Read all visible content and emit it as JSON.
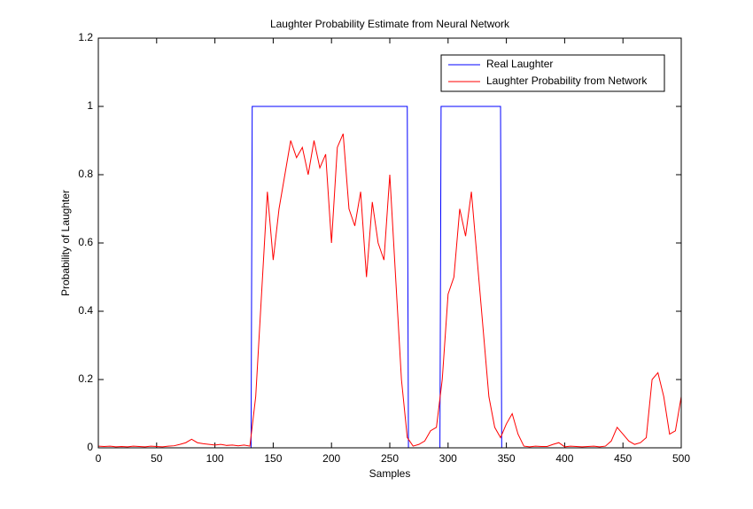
{
  "chart_data": {
    "type": "line",
    "title": "Laughter Probability Estimate from Neural Network",
    "x_label": "Samples",
    "y_label": "Probability of Laughter",
    "xlim": [
      0,
      500
    ],
    "ylim": [
      0,
      1.2
    ],
    "xticks": [
      0,
      50,
      100,
      150,
      200,
      250,
      300,
      350,
      400,
      450,
      500
    ],
    "yticks": [
      0,
      0.2,
      0.4,
      0.6,
      0.8,
      1,
      1.2
    ],
    "legend": "top-right",
    "series": [
      {
        "name": "Real Laughter",
        "color": "#0000ff",
        "x": [
          0,
          131,
          132,
          265,
          266,
          293,
          294,
          345,
          346,
          500
        ],
        "values": [
          0,
          0,
          1,
          1,
          0,
          0,
          1,
          1,
          0,
          0
        ]
      },
      {
        "name": "Laughter Probability from Network",
        "color": "#ff0000",
        "x": [
          0,
          5,
          10,
          15,
          20,
          25,
          30,
          35,
          40,
          45,
          50,
          55,
          60,
          65,
          70,
          75,
          80,
          85,
          90,
          95,
          100,
          105,
          110,
          115,
          120,
          125,
          130,
          135,
          140,
          145,
          150,
          155,
          160,
          165,
          170,
          175,
          180,
          185,
          190,
          195,
          200,
          205,
          210,
          215,
          220,
          225,
          230,
          235,
          240,
          245,
          250,
          255,
          260,
          265,
          270,
          275,
          280,
          285,
          290,
          295,
          300,
          305,
          310,
          315,
          320,
          325,
          330,
          335,
          340,
          345,
          350,
          355,
          360,
          365,
          370,
          375,
          380,
          385,
          390,
          395,
          400,
          405,
          410,
          415,
          420,
          425,
          430,
          435,
          440,
          445,
          450,
          455,
          460,
          465,
          470,
          475,
          480,
          485,
          490,
          495,
          500
        ],
        "values": [
          0.005,
          0.004,
          0.005,
          0.003,
          0.004,
          0.003,
          0.005,
          0.004,
          0.003,
          0.005,
          0.004,
          0.003,
          0.005,
          0.006,
          0.01,
          0.015,
          0.025,
          0.015,
          0.012,
          0.01,
          0.008,
          0.01,
          0.007,
          0.008,
          0.006,
          0.008,
          0.005,
          0.15,
          0.45,
          0.75,
          0.55,
          0.7,
          0.8,
          0.9,
          0.85,
          0.88,
          0.8,
          0.9,
          0.82,
          0.86,
          0.6,
          0.88,
          0.92,
          0.7,
          0.65,
          0.75,
          0.5,
          0.72,
          0.6,
          0.55,
          0.8,
          0.5,
          0.2,
          0.03,
          0.005,
          0.01,
          0.02,
          0.05,
          0.06,
          0.2,
          0.45,
          0.5,
          0.7,
          0.62,
          0.75,
          0.55,
          0.35,
          0.15,
          0.06,
          0.03,
          0.07,
          0.1,
          0.04,
          0.005,
          0.003,
          0.005,
          0.004,
          0.004,
          0.01,
          0.015,
          0.003,
          0.005,
          0.004,
          0.003,
          0.004,
          0.005,
          0.003,
          0.005,
          0.02,
          0.06,
          0.04,
          0.02,
          0.01,
          0.015,
          0.03,
          0.2,
          0.22,
          0.15,
          0.04,
          0.05,
          0.15
        ]
      }
    ]
  }
}
